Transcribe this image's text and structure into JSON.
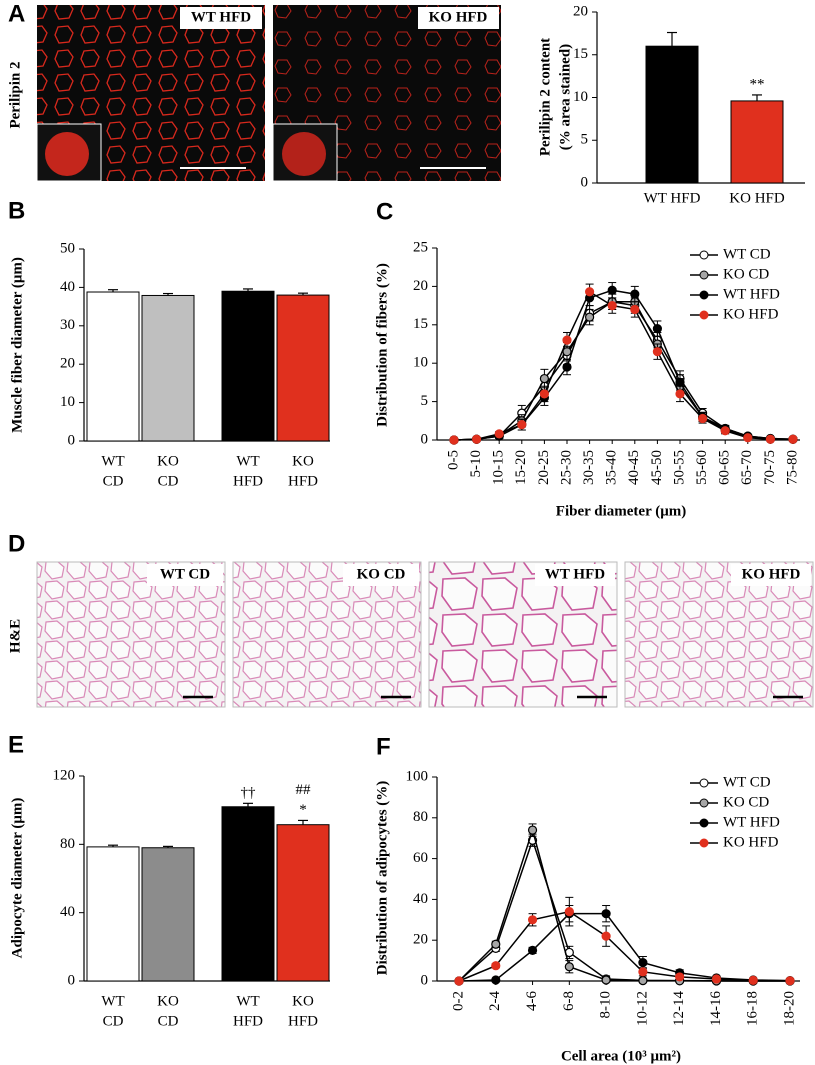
{
  "figure": {
    "panel_letters": [
      "A",
      "B",
      "C",
      "D",
      "E",
      "F"
    ],
    "image_row_labels": [
      "Perilipin 2",
      "H&E"
    ],
    "images": [
      {
        "label": "WT HFD"
      },
      {
        "label": "KO HFD"
      },
      {
        "label": "WT CD"
      },
      {
        "label": "KO CD"
      },
      {
        "label": "WT HFD"
      },
      {
        "label": "KO HFD"
      }
    ]
  },
  "chart_data": [
    {
      "type": "bar",
      "ylabel": [
        "Perilipin 2 content",
        "(% area stained)"
      ],
      "categories": [
        "WT HFD",
        "KO HFD"
      ],
      "values": [
        16,
        9.6
      ],
      "errors": [
        1.6,
        0.7
      ],
      "colors": [
        "#000000",
        "#e0301e"
      ],
      "annotations": [
        null,
        [
          "**"
        ]
      ],
      "ylim": [
        0,
        20
      ],
      "yticks": [
        0,
        5,
        10,
        15,
        20
      ]
    },
    {
      "type": "bar",
      "ylabel": [
        "Muscle fiber diameter (μm)"
      ],
      "categories": [
        [
          "WT",
          "CD"
        ],
        [
          "KO",
          "CD"
        ],
        [
          "WT",
          "HFD"
        ],
        [
          "KO",
          "HFD"
        ]
      ],
      "values": [
        38.8,
        37.9,
        39,
        38
      ],
      "errors": [
        0.6,
        0.5,
        0.6,
        0.5
      ],
      "colors": [
        "#ffffff",
        "#bfbfbf",
        "#000000",
        "#e0301e"
      ],
      "annotations": [
        null,
        null,
        null,
        null
      ],
      "ylim": [
        0,
        50
      ],
      "yticks": [
        0,
        10,
        20,
        30,
        40,
        50
      ]
    },
    {
      "type": "line",
      "ylabel": [
        "Distribution of fibers (%)"
      ],
      "xlabel": "Fiber diameter (μm)",
      "categories": [
        "0-5",
        "5-10",
        "10-15",
        "15-20",
        "20-25",
        "25-30",
        "30-35",
        "35-40",
        "40-45",
        "45-50",
        "50-55",
        "55-60",
        "60-65",
        "65-70",
        "70-75",
        "75-80"
      ],
      "legend": "top-right",
      "ylim": [
        0,
        25
      ],
      "yticks": [
        0,
        5,
        10,
        15,
        20,
        25
      ],
      "series": [
        {
          "name": "WT CD",
          "color": "#ffffff",
          "values": [
            0,
            0.1,
            0.5,
            3.5,
            7,
            11,
            16.5,
            18,
            17.5,
            13,
            8,
            3.5,
            1.5,
            0.5,
            0.2,
            0.1
          ],
          "errors": [
            0,
            0.1,
            0.3,
            1,
            1.2,
            1.2,
            1,
            1,
            1,
            1,
            1,
            0.6,
            0.4,
            0.2,
            0.1,
            0.1
          ]
        },
        {
          "name": "KO CD",
          "color": "#a6a6a6",
          "values": [
            0,
            0.1,
            0.6,
            2.5,
            8,
            11.5,
            16,
            18,
            18,
            12.5,
            7,
            3,
            1.3,
            0.4,
            0.1,
            0.1
          ],
          "errors": [
            0,
            0.1,
            0.3,
            0.8,
            1.2,
            1.2,
            1,
            1,
            1,
            1,
            1,
            0.6,
            0.4,
            0.2,
            0.1,
            0.1
          ]
        },
        {
          "name": "WT HFD",
          "color": "#000000",
          "values": [
            0,
            0.1,
            0.5,
            2,
            5.5,
            9.5,
            18.5,
            19.5,
            19,
            14.5,
            7.5,
            3,
            1.5,
            0.5,
            0.2,
            0.1
          ],
          "errors": [
            0,
            0.1,
            0.3,
            0.7,
            1,
            1,
            1,
            1,
            1,
            1,
            1,
            0.6,
            0.4,
            0.2,
            0.1,
            0.1
          ]
        },
        {
          "name": "KO HFD",
          "color": "#e0301e",
          "values": [
            0,
            0.1,
            0.8,
            2,
            6,
            13,
            19.3,
            17.5,
            17,
            11.5,
            6,
            2.8,
            1.2,
            0.3,
            0.1,
            0.1
          ],
          "errors": [
            0,
            0.1,
            0.3,
            0.7,
            1,
            1,
            1,
            1,
            1,
            1,
            1,
            0.6,
            0.4,
            0.2,
            0.1,
            0.1
          ]
        }
      ]
    },
    {
      "type": "bar",
      "ylabel": [
        "Adipocyte diameter (μm)"
      ],
      "categories": [
        [
          "WT",
          "CD"
        ],
        [
          "KO",
          "CD"
        ],
        [
          "WT",
          "HFD"
        ],
        [
          "KO",
          "HFD"
        ]
      ],
      "values": [
        78.5,
        78,
        102,
        91.5
      ],
      "errors": [
        1,
        0.8,
        2,
        2.5
      ],
      "colors": [
        "#ffffff",
        "#8c8c8c",
        "#000000",
        "#e0301e"
      ],
      "annotations": [
        null,
        null,
        [
          "††"
        ],
        [
          "##",
          "*"
        ]
      ],
      "ylim": [
        0,
        120
      ],
      "yticks": [
        0,
        40,
        80,
        120
      ]
    },
    {
      "type": "line",
      "ylabel": [
        "Distribution of adipocytes (%)"
      ],
      "xlabel": "Cell area (10³ μm²)",
      "categories": [
        "0-2",
        "2-4",
        "4-6",
        "6-8",
        "8-10",
        "10-12",
        "12-14",
        "14-16",
        "16-18",
        "18-20"
      ],
      "legend": "top-right",
      "ylim": [
        0,
        100
      ],
      "yticks": [
        0,
        20,
        40,
        60,
        80,
        100
      ],
      "series": [
        {
          "name": "WT CD",
          "color": "#ffffff",
          "values": [
            0,
            16,
            69,
            14,
            1,
            0.3,
            0.2,
            0.1,
            0,
            0
          ],
          "errors": [
            0,
            1.5,
            3,
            3,
            1.5,
            0.5,
            0.3,
            0.2,
            0.1,
            0.1
          ]
        },
        {
          "name": "KO CD",
          "color": "#a6a6a6",
          "values": [
            0,
            18,
            74,
            7,
            0.5,
            0.2,
            0.1,
            0,
            0,
            0
          ],
          "errors": [
            0,
            1.5,
            3,
            3,
            1,
            0.5,
            0.3,
            0.2,
            0.1,
            0.1
          ]
        },
        {
          "name": "WT HFD",
          "color": "#000000",
          "values": [
            0,
            0.5,
            15,
            33,
            33,
            9,
            4,
            1.5,
            0.5,
            0.2
          ],
          "errors": [
            0,
            0.3,
            1.5,
            4,
            4,
            3,
            1.5,
            0.8,
            0.4,
            0.2
          ]
        },
        {
          "name": "KO HFD",
          "color": "#e0301e",
          "values": [
            0,
            7.5,
            30,
            34,
            22,
            4.5,
            2,
            1,
            0.3,
            0.1
          ],
          "errors": [
            0,
            1,
            3,
            7,
            5,
            2,
            1,
            0.6,
            0.3,
            0.1
          ]
        }
      ]
    }
  ]
}
